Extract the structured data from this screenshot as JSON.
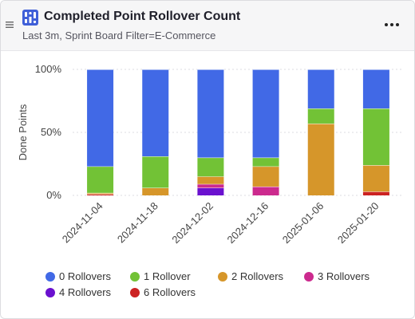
{
  "header": {
    "title": "Completed Point Rollover Count",
    "subtitle": "Last 3m, Sprint Board Filter=E-Commerce",
    "menu_icon": "drag-handle-icon",
    "app_icon": "bar-chart-icon",
    "more_icon": "more-dots-icon"
  },
  "chart_data": {
    "type": "bar",
    "stacked": true,
    "xlabel": "",
    "ylabel": "Done Points",
    "ylim": [
      0,
      100
    ],
    "yticks": [
      "0%",
      "50%",
      "100%"
    ],
    "categories": [
      "2024-11-04",
      "2024-11-18",
      "2024-12-02",
      "2024-12-16",
      "2025-01-06",
      "2025-01-20"
    ],
    "series": [
      {
        "name": "6 Rollovers",
        "color": "#cc2222",
        "values": [
          1,
          0,
          0,
          0,
          0,
          3
        ]
      },
      {
        "name": "4 Rollovers",
        "color": "#6a11cf",
        "values": [
          0,
          0,
          6,
          0,
          0,
          0
        ]
      },
      {
        "name": "3 Rollovers",
        "color": "#cc2a8e",
        "values": [
          0,
          0,
          3,
          7,
          0,
          0
        ]
      },
      {
        "name": "2 Rollovers",
        "color": "#d6962a",
        "values": [
          1,
          6,
          6,
          16,
          57,
          21
        ]
      },
      {
        "name": "1 Rollover",
        "color": "#72c236",
        "values": [
          21,
          25,
          15,
          7,
          12,
          45
        ]
      },
      {
        "name": "0 Rollovers",
        "color": "#4169e6",
        "values": [
          77,
          69,
          70,
          70,
          31,
          31
        ]
      }
    ],
    "grid": true,
    "legend_position": "bottom"
  },
  "legend": [
    {
      "label": "0 Rollovers",
      "color": "#4169e6"
    },
    {
      "label": "1 Rollover",
      "color": "#72c236"
    },
    {
      "label": "2 Rollovers",
      "color": "#d6962a"
    },
    {
      "label": "3 Rollovers",
      "color": "#cc2a8e"
    },
    {
      "label": "4 Rollovers",
      "color": "#6a11cf"
    },
    {
      "label": "6 Rollovers",
      "color": "#cc2222"
    }
  ]
}
